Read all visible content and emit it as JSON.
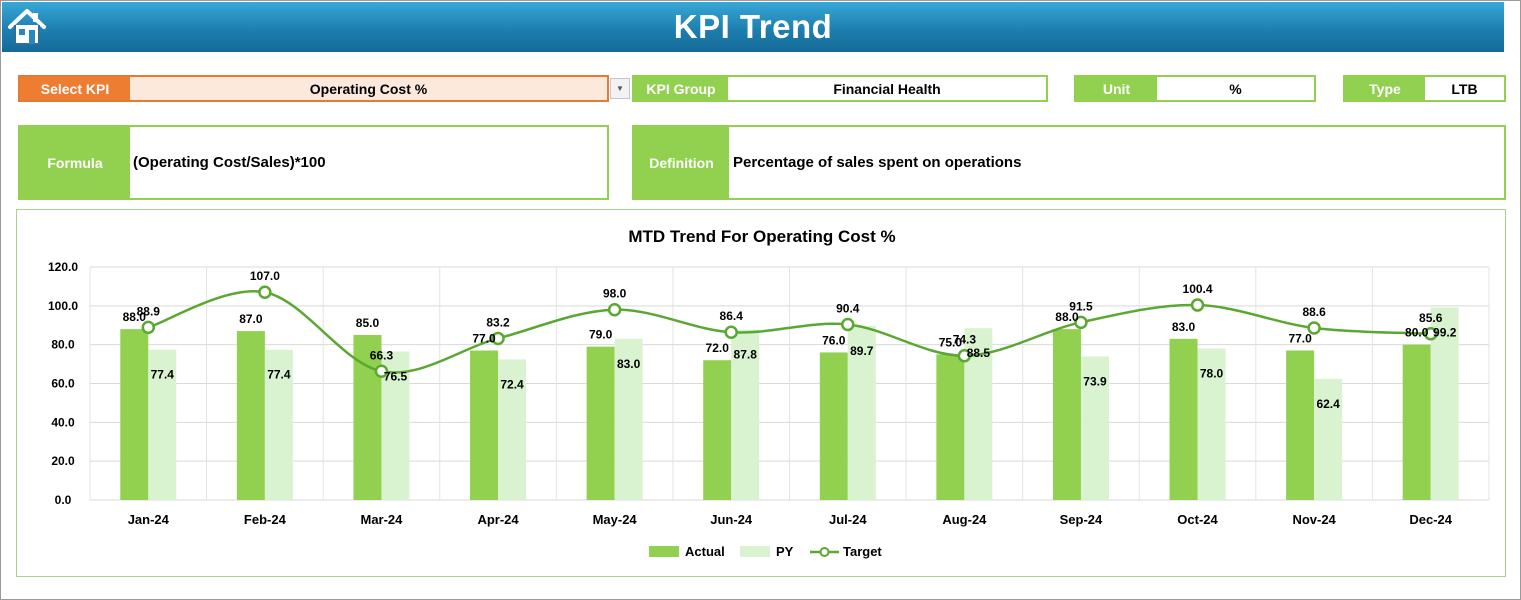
{
  "header": {
    "title": "KPI Trend",
    "home_icon": "home-icon"
  },
  "filters": {
    "select_kpi_label": "Select KPI",
    "select_kpi_value": "Operating Cost %",
    "kpi_group_label": "KPI Group",
    "kpi_group_value": "Financial Health",
    "unit_label": "Unit",
    "unit_value": "%",
    "type_label": "Type",
    "type_value": "LTB"
  },
  "details": {
    "formula_label": "Formula",
    "formula_value": "(Operating Cost/Sales)*100",
    "definition_label": "Definition",
    "definition_value": "Percentage of sales spent on operations"
  },
  "colors": {
    "accent_green": "#92d050",
    "actual_bar": "#92d050",
    "py_bar": "#d9f2d0",
    "target_line": "#5aa832",
    "select_orange": "#ed7d31",
    "banner_blue": "#1d7fb0"
  },
  "chart_data": {
    "type": "bar",
    "title": "MTD Trend For Operating Cost %",
    "categories": [
      "Jan-24",
      "Feb-24",
      "Mar-24",
      "Apr-24",
      "May-24",
      "Jun-24",
      "Jul-24",
      "Aug-24",
      "Sep-24",
      "Oct-24",
      "Nov-24",
      "Dec-24"
    ],
    "series": [
      {
        "name": "Actual",
        "kind": "bar",
        "values": [
          88.0,
          87.0,
          85.0,
          77.0,
          79.0,
          72.0,
          76.0,
          75.0,
          88.0,
          83.0,
          77.0,
          80.0
        ]
      },
      {
        "name": "PY",
        "kind": "bar",
        "values": [
          77.4,
          77.4,
          76.5,
          72.4,
          83.0,
          87.8,
          89.7,
          88.5,
          73.9,
          78.0,
          62.4,
          99.2
        ]
      },
      {
        "name": "Target",
        "kind": "line",
        "values": [
          88.9,
          107.0,
          66.3,
          83.2,
          98.0,
          86.4,
          90.4,
          74.3,
          91.5,
          100.4,
          88.6,
          85.6
        ]
      }
    ],
    "ylim": [
      0,
      120
    ],
    "yticks": [
      "0.0",
      "20.0",
      "40.0",
      "60.0",
      "80.0",
      "100.0",
      "120.0"
    ],
    "grid": true,
    "legend_position": "bottom"
  }
}
